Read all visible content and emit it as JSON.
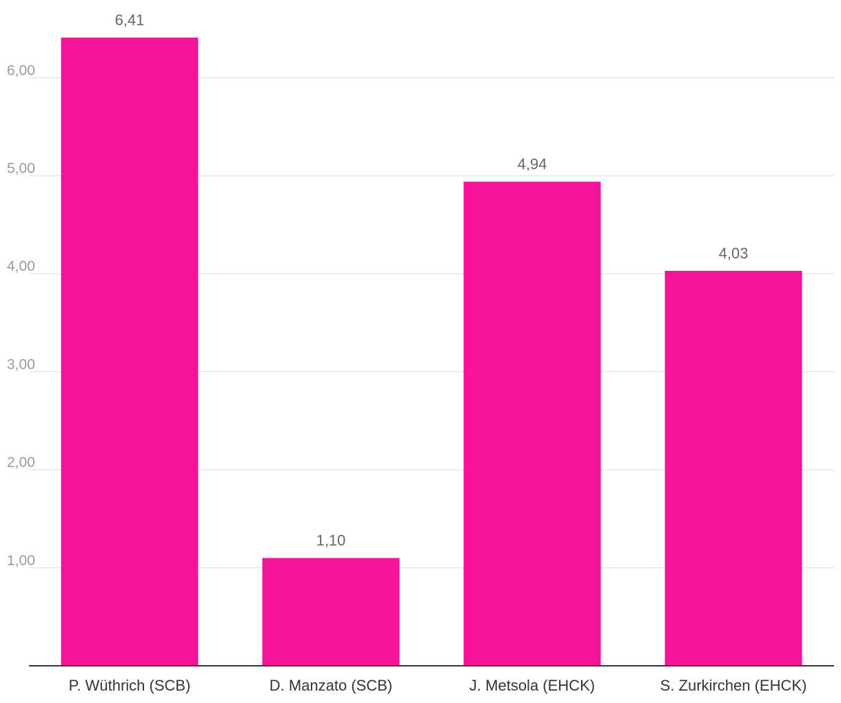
{
  "chart_data": {
    "type": "bar",
    "categories": [
      "P. Wüthrich (SCB)",
      "D. Manzato (SCB)",
      "J. Metsola (EHCK)",
      "S. Zurkirchen (EHCK)"
    ],
    "values": [
      6.41,
      1.1,
      4.94,
      4.03
    ],
    "value_labels": [
      "6,41",
      "1,10",
      "4,94",
      "4,03"
    ],
    "y_ticks": [
      1,
      2,
      3,
      4,
      5,
      6
    ],
    "y_tick_labels": [
      "1,00",
      "2,00",
      "3,00",
      "4,00",
      "5,00",
      "6,00"
    ],
    "ylim": [
      0,
      6.41
    ],
    "grid": true,
    "legend": "none",
    "title": "",
    "xlabel": "",
    "ylabel": "",
    "colors": {
      "bar": "#f5139a",
      "grid": "#e6e6e6",
      "axis": "#333333",
      "y_tick_text": "#9b9b9b",
      "x_tick_text": "#333333",
      "data_label_text": "#666666"
    }
  }
}
